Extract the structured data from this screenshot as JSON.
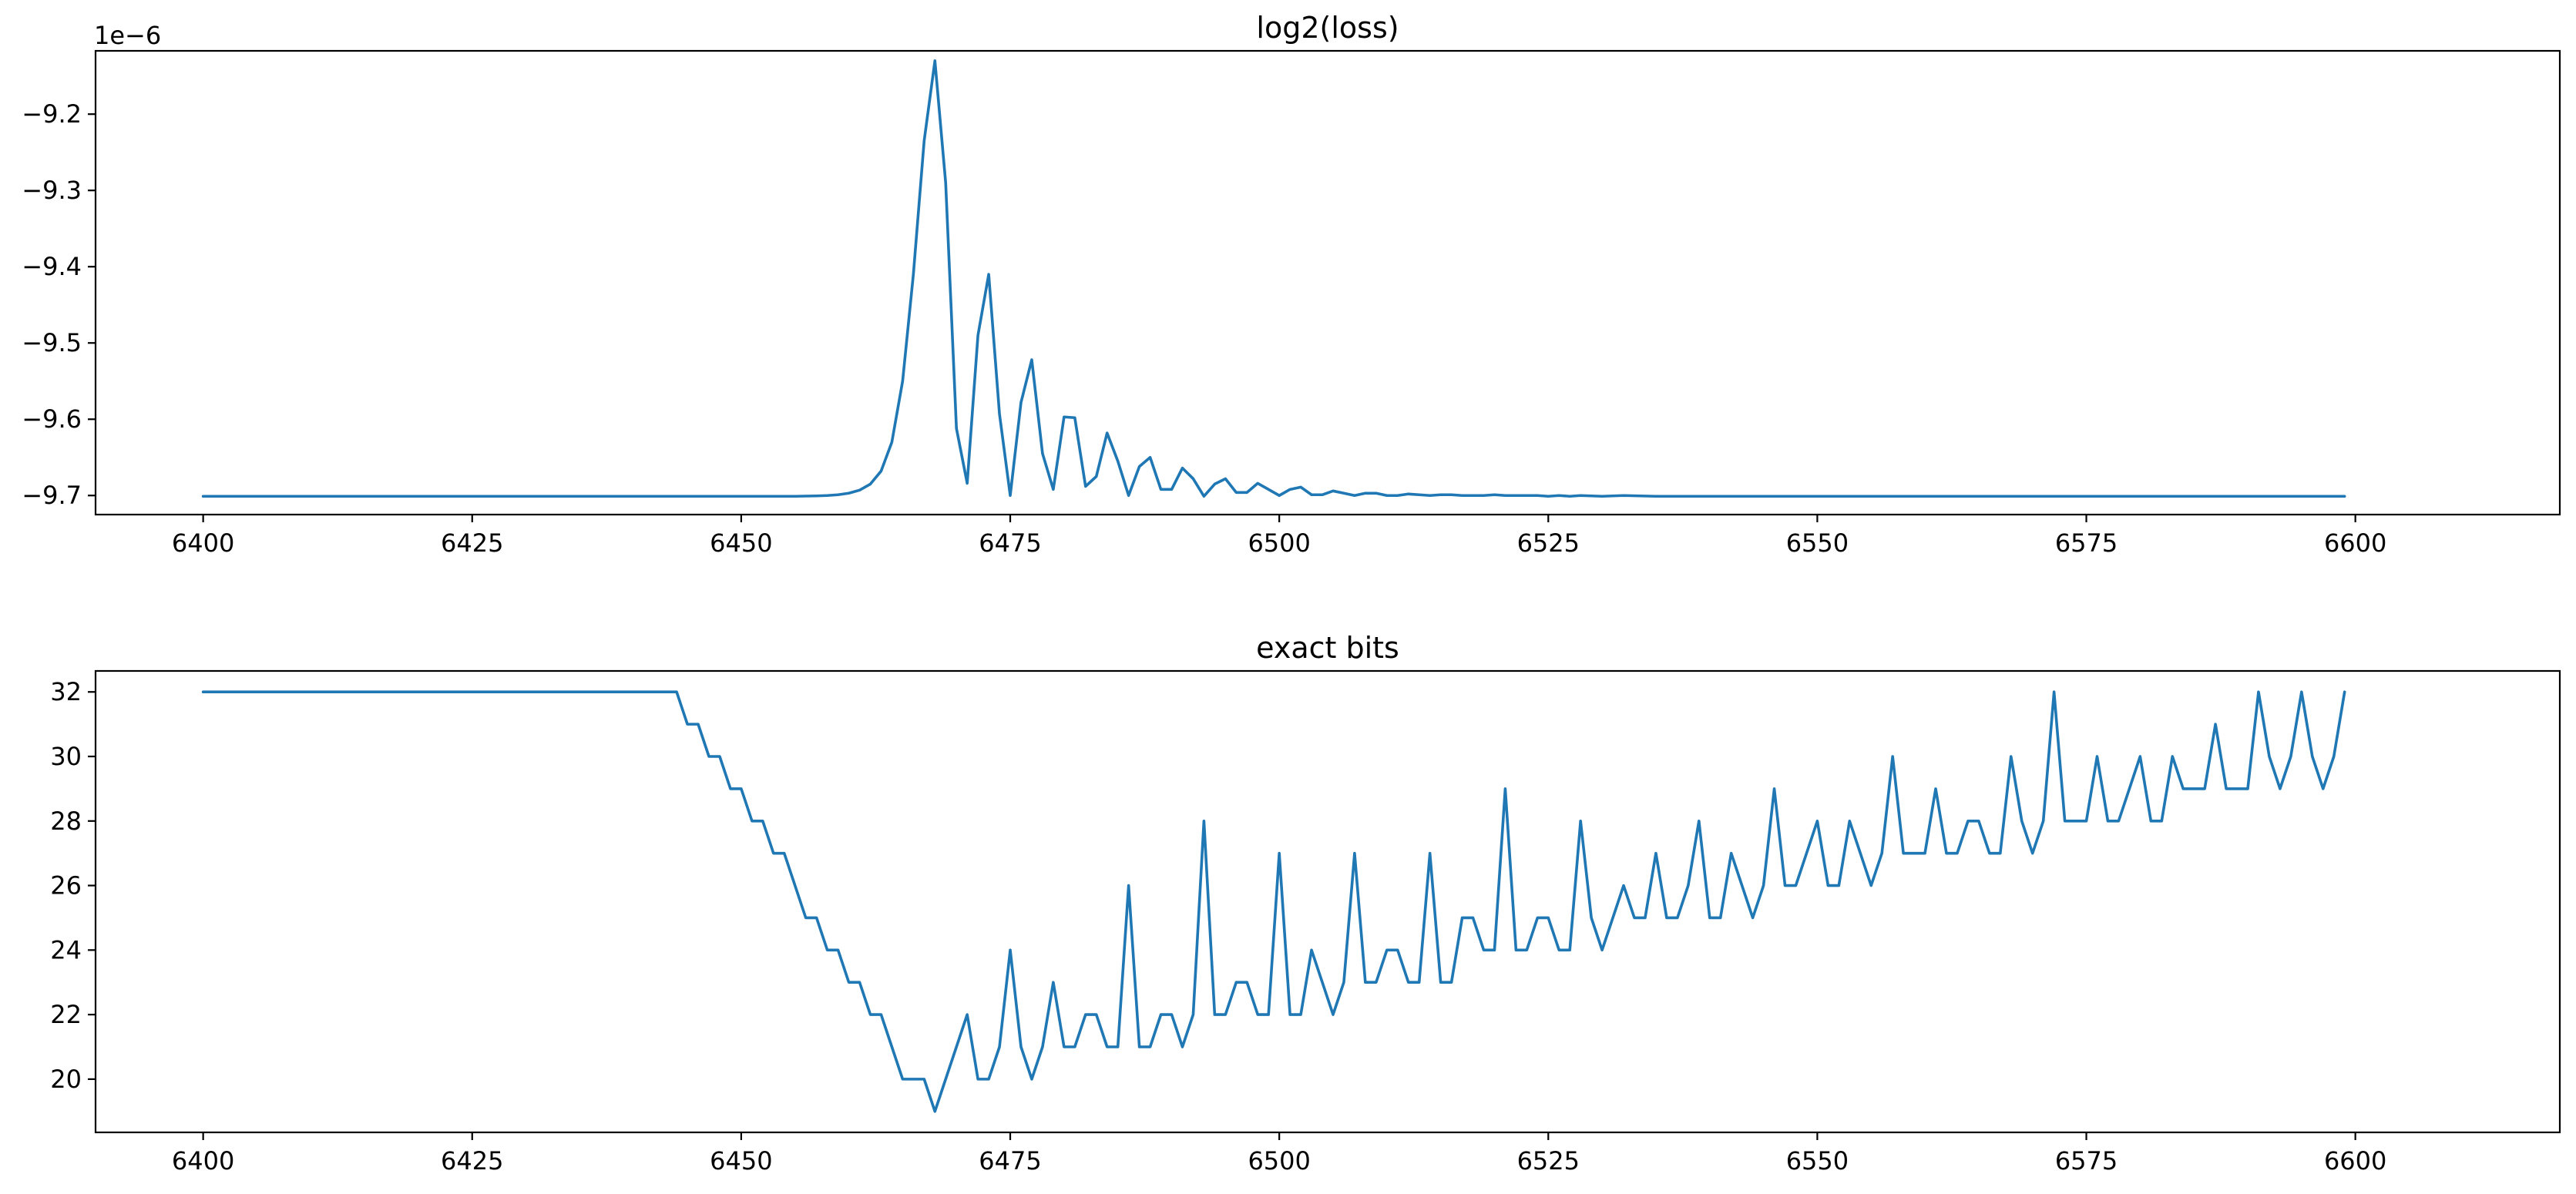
{
  "colors": {
    "series": "#1f77b4"
  },
  "chart_data": [
    {
      "type": "line",
      "title": "log2(loss)",
      "xlabel": "",
      "ylabel": "",
      "y_offset_text": "1e−6",
      "xlim": [
        6390,
        6619
      ],
      "ylim": [
        -9.725,
        -9.117
      ],
      "x_ticks": [
        6400,
        6425,
        6450,
        6475,
        6500,
        6525,
        6550,
        6575,
        6600
      ],
      "x_tick_labels": [
        "6400",
        "6425",
        "6450",
        "6475",
        "6500",
        "6525",
        "6550",
        "6575",
        "6600"
      ],
      "y_ticks": [
        -9.2,
        -9.3,
        -9.4,
        -9.5,
        -9.6,
        -9.7
      ],
      "y_tick_labels": [
        "−9.2",
        "−9.3",
        "−9.4",
        "−9.5",
        "−9.6",
        "−9.7"
      ],
      "grid": false,
      "series": [
        {
          "x": [
            6400,
            6455,
            6457,
            6458,
            6459,
            6460,
            6461,
            6462,
            6463,
            6464,
            6465,
            6466,
            6467,
            6468,
            6469,
            6470,
            6471,
            6472,
            6473,
            6474,
            6475,
            6476,
            6477,
            6478,
            6479,
            6480,
            6481,
            6482,
            6483,
            6484,
            6485,
            6486,
            6487,
            6488,
            6489,
            6490,
            6491,
            6492,
            6493,
            6494,
            6495,
            6496,
            6497,
            6498,
            6499,
            6500,
            6501,
            6502,
            6503,
            6504,
            6505,
            6506,
            6507,
            6508,
            6509,
            6510,
            6511,
            6512,
            6513,
            6514,
            6515,
            6516,
            6517,
            6518,
            6519,
            6520,
            6521,
            6522,
            6523,
            6524,
            6525,
            6526,
            6527,
            6528,
            6530,
            6532,
            6535,
            6540,
            6599
          ],
          "y": [
            -9.701,
            -9.701,
            -9.7005,
            -9.7,
            -9.699,
            -9.697,
            -9.693,
            -9.685,
            -9.668,
            -9.63,
            -9.55,
            -9.41,
            -9.235,
            -9.13,
            -9.29,
            -9.612,
            -9.684,
            -9.49,
            -9.41,
            -9.593,
            -9.7,
            -9.578,
            -9.522,
            -9.645,
            -9.692,
            -9.597,
            -9.598,
            -9.688,
            -9.675,
            -9.618,
            -9.655,
            -9.7,
            -9.662,
            -9.65,
            -9.692,
            -9.692,
            -9.664,
            -9.678,
            -9.701,
            -9.685,
            -9.678,
            -9.696,
            -9.696,
            -9.684,
            -9.692,
            -9.7,
            -9.692,
            -9.689,
            -9.699,
            -9.699,
            -9.694,
            -9.697,
            -9.7,
            -9.697,
            -9.697,
            -9.7,
            -9.7,
            -9.698,
            -9.699,
            -9.7,
            -9.699,
            -9.699,
            -9.7,
            -9.7,
            -9.7,
            -9.699,
            -9.7,
            -9.7,
            -9.7,
            -9.7,
            -9.701,
            -9.7,
            -9.701,
            -9.7,
            -9.701,
            -9.7,
            -9.701,
            -9.701,
            -9.701
          ]
        }
      ]
    },
    {
      "type": "line",
      "title": "exact bits",
      "xlabel": "",
      "ylabel": "",
      "xlim": [
        6390,
        6619
      ],
      "ylim": [
        18.35,
        32.65
      ],
      "x_ticks": [
        6400,
        6425,
        6450,
        6475,
        6500,
        6525,
        6550,
        6575,
        6600
      ],
      "x_tick_labels": [
        "6400",
        "6425",
        "6450",
        "6475",
        "6500",
        "6525",
        "6550",
        "6575",
        "6600"
      ],
      "y_ticks": [
        32,
        30,
        28,
        26,
        24,
        22,
        20
      ],
      "y_tick_labels": [
        "32",
        "30",
        "28",
        "26",
        "24",
        "22",
        "20"
      ],
      "grid": false,
      "series": [
        {
          "x": [
            6400,
            6444,
            6445,
            6446,
            6447,
            6448,
            6449,
            6450,
            6451,
            6452,
            6453,
            6454,
            6455,
            6456,
            6457,
            6458,
            6459,
            6460,
            6461,
            6462,
            6463,
            6464,
            6465,
            6466,
            6467,
            6468,
            6469,
            6470,
            6471,
            6472,
            6473,
            6474,
            6475,
            6476,
            6477,
            6478,
            6479,
            6480,
            6481,
            6482,
            6483,
            6484,
            6485,
            6486,
            6487,
            6488,
            6489,
            6490,
            6491,
            6492,
            6493,
            6494,
            6495,
            6496,
            6497,
            6498,
            6499,
            6500,
            6501,
            6502,
            6503,
            6504,
            6505,
            6506,
            6507,
            6508,
            6509,
            6510,
            6511,
            6512,
            6513,
            6514,
            6515,
            6516,
            6517,
            6518,
            6519,
            6520,
            6521,
            6522,
            6523,
            6524,
            6525,
            6526,
            6527,
            6528,
            6529,
            6530,
            6531,
            6532,
            6533,
            6534,
            6535,
            6536,
            6537,
            6538,
            6539,
            6540,
            6541,
            6542,
            6543,
            6544,
            6545,
            6546,
            6547,
            6548,
            6549,
            6550,
            6551,
            6552,
            6553,
            6554,
            6555,
            6556,
            6557,
            6558,
            6559,
            6560,
            6561,
            6562,
            6563,
            6564,
            6565,
            6566,
            6567,
            6568,
            6569,
            6570,
            6571,
            6572,
            6573,
            6574,
            6575,
            6576,
            6577,
            6578,
            6579,
            6580,
            6581,
            6582,
            6583,
            6584,
            6585,
            6586,
            6587,
            6588,
            6589,
            6590,
            6591,
            6592,
            6593,
            6594,
            6595,
            6596,
            6597,
            6598,
            6599
          ],
          "y": [
            32,
            32,
            31,
            31,
            30,
            30,
            29,
            29,
            28,
            28,
            27,
            27,
            26,
            25,
            25,
            24,
            24,
            23,
            23,
            22,
            22,
            21,
            20,
            20,
            20,
            19,
            20,
            21,
            22,
            20,
            20,
            21,
            24,
            21,
            20,
            21,
            23,
            21,
            21,
            22,
            22,
            21,
            21,
            26,
            21,
            21,
            22,
            22,
            21,
            22,
            28,
            22,
            22,
            23,
            23,
            22,
            22,
            27,
            22,
            22,
            24,
            23,
            22,
            23,
            27,
            23,
            23,
            24,
            24,
            23,
            23,
            27,
            23,
            23,
            25,
            25,
            24,
            24,
            29,
            24,
            24,
            25,
            25,
            24,
            24,
            28,
            25,
            24,
            25,
            26,
            25,
            25,
            27,
            25,
            25,
            26,
            28,
            25,
            25,
            27,
            26,
            25,
            26,
            29,
            26,
            26,
            27,
            28,
            26,
            26,
            28,
            27,
            26,
            27,
            30,
            27,
            27,
            27,
            29,
            27,
            27,
            28,
            28,
            27,
            27,
            30,
            28,
            27,
            28,
            32,
            28,
            28,
            28,
            30,
            28,
            28,
            29,
            30,
            28,
            28,
            30,
            29,
            29,
            29,
            31,
            29,
            29,
            29,
            32,
            30,
            29,
            30,
            32,
            30,
            29,
            30,
            32
          ]
        }
      ]
    }
  ]
}
